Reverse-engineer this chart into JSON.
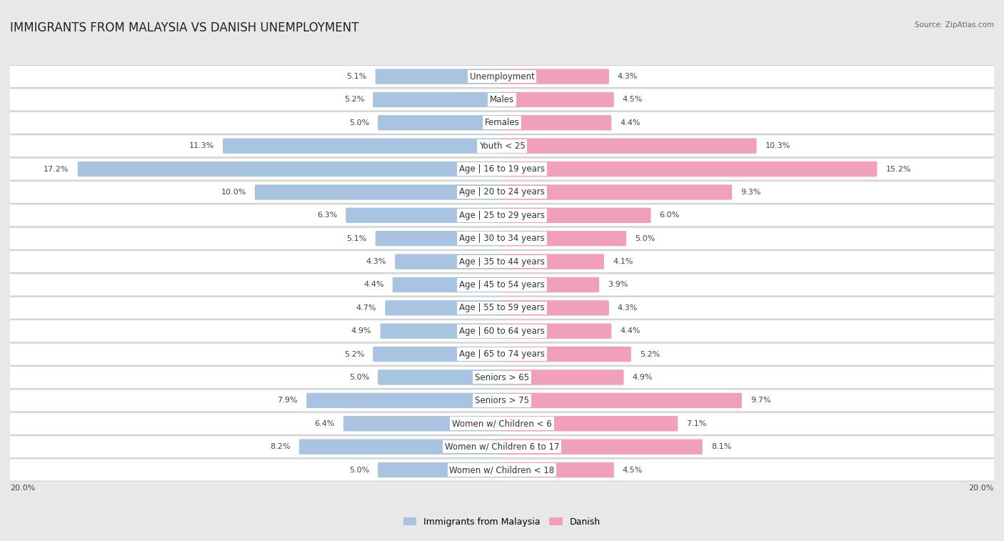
{
  "title": "IMMIGRANTS FROM MALAYSIA VS DANISH UNEMPLOYMENT",
  "source": "Source: ZipAtlas.com",
  "categories": [
    "Unemployment",
    "Males",
    "Females",
    "Youth < 25",
    "Age | 16 to 19 years",
    "Age | 20 to 24 years",
    "Age | 25 to 29 years",
    "Age | 30 to 34 years",
    "Age | 35 to 44 years",
    "Age | 45 to 54 years",
    "Age | 55 to 59 years",
    "Age | 60 to 64 years",
    "Age | 65 to 74 years",
    "Seniors > 65",
    "Seniors > 75",
    "Women w/ Children < 6",
    "Women w/ Children 6 to 17",
    "Women w/ Children < 18"
  ],
  "left_values": [
    5.1,
    5.2,
    5.0,
    11.3,
    17.2,
    10.0,
    6.3,
    5.1,
    4.3,
    4.4,
    4.7,
    4.9,
    5.2,
    5.0,
    7.9,
    6.4,
    8.2,
    5.0
  ],
  "right_values": [
    4.3,
    4.5,
    4.4,
    10.3,
    15.2,
    9.3,
    6.0,
    5.0,
    4.1,
    3.9,
    4.3,
    4.4,
    5.2,
    4.9,
    9.7,
    7.1,
    8.1,
    4.5
  ],
  "left_color": "#a8c4e0",
  "right_color": "#f0a0b8",
  "left_label": "Immigrants from Malaysia",
  "right_label": "Danish",
  "axis_max": 20.0,
  "bg_color": "#e8e8e8",
  "title_fontsize": 12,
  "label_fontsize": 8.5,
  "value_fontsize": 8
}
